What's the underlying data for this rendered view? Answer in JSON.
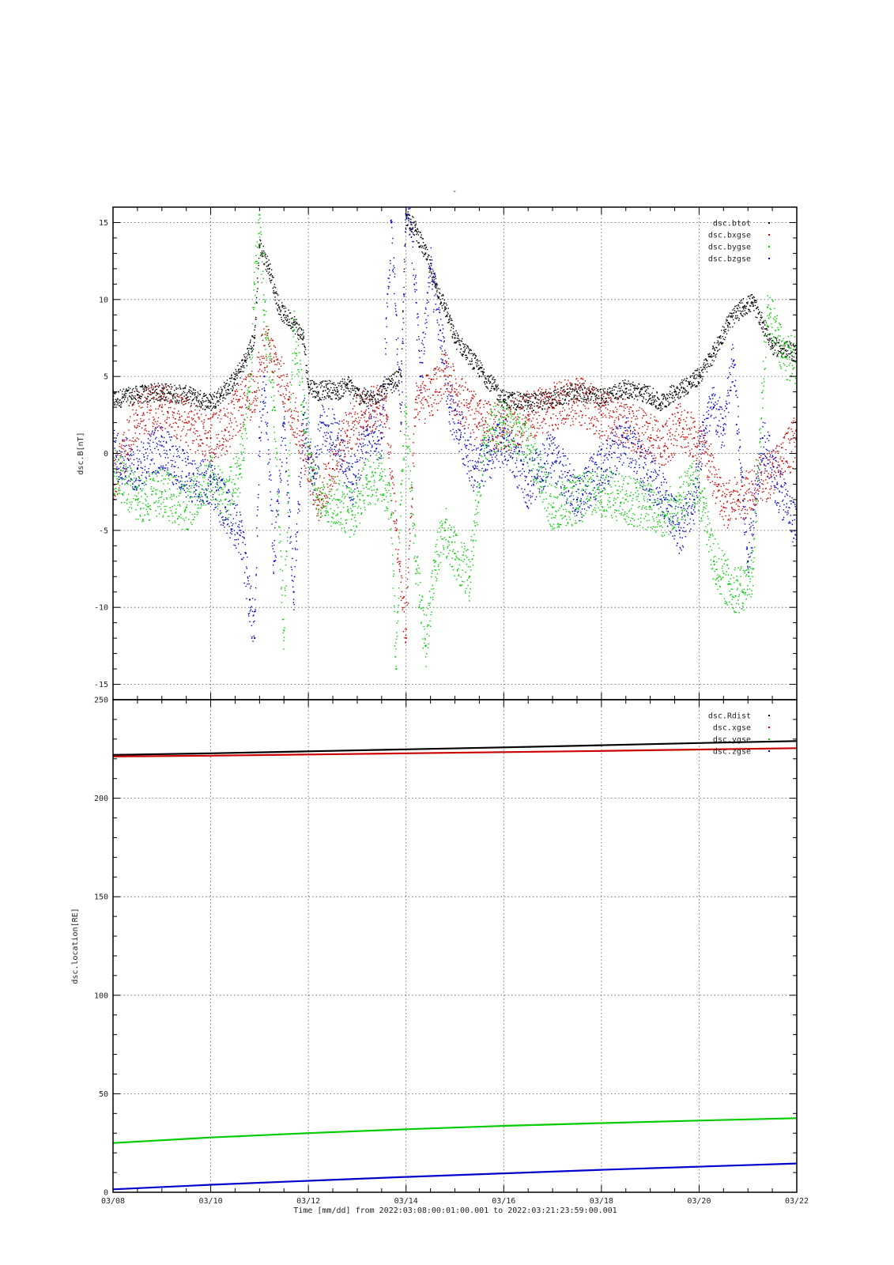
{
  "figure": {
    "top_marker": "-",
    "xlabel": "Time [mm/dd]  from 2022:03:08:00:01:00.001  to  2022:03:21:23:59:00.001"
  },
  "colors": {
    "black": "#000000",
    "red": "#cc0000",
    "green": "#00cc00",
    "blue": "#0000cc"
  },
  "chart_data": [
    {
      "type": "scatter",
      "id": "magnetic-field",
      "title": "",
      "ylabel": "dsc.B[nT]",
      "xlabel": "",
      "xlim": [
        0,
        14
      ],
      "ylim": [
        -16,
        16
      ],
      "x_unit": "days since 03/08 00:00",
      "xticks": [
        0,
        2,
        4,
        6,
        8,
        10,
        12,
        14
      ],
      "xtick_labels": [
        "03/08",
        "03/10",
        "03/12",
        "03/14",
        "03/16",
        "03/18",
        "03/20",
        "03/22"
      ],
      "yticks": [
        -15,
        -10,
        -5,
        0,
        5,
        10,
        15
      ],
      "ytick_labels": [
        "-15",
        "-10",
        "-5",
        "0",
        "5",
        "10",
        "15"
      ],
      "grid": true,
      "legend_position": "top-right",
      "series": [
        {
          "name": "dsc.btot",
          "color": "#000000",
          "x": [
            0,
            0.5,
            1,
            1.5,
            2,
            2.2,
            2.5,
            2.7,
            2.9,
            3.0,
            3.2,
            3.4,
            3.5,
            3.7,
            3.9,
            4.0,
            4.2,
            4.4,
            4.6,
            4.8,
            5.0,
            5.3,
            5.5,
            5.7,
            5.9,
            6.0,
            6.2,
            6.4,
            6.6,
            6.8,
            7.0,
            7.5,
            8.0,
            8.5,
            9.0,
            9.5,
            10.0,
            10.5,
            11.0,
            11.2,
            11.5,
            11.8,
            12.0,
            12.3,
            12.6,
            12.9,
            13.1,
            13.3,
            13.5,
            13.7,
            14.0
          ],
          "y": [
            3.5,
            3.8,
            4.0,
            3.8,
            3.3,
            3.8,
            4.8,
            6.0,
            7.5,
            13.5,
            12.0,
            9.5,
            9.0,
            8.5,
            7.5,
            4.5,
            4.0,
            4.2,
            4.0,
            4.5,
            3.8,
            3.5,
            4.0,
            4.5,
            5.0,
            15.5,
            14.5,
            13.0,
            11.0,
            9.5,
            7.5,
            5.5,
            3.5,
            3.3,
            3.5,
            4.0,
            3.6,
            4.2,
            3.8,
            3.2,
            4.0,
            4.5,
            5.0,
            6.5,
            8.5,
            9.5,
            9.8,
            8.5,
            7.0,
            6.8,
            6.5
          ]
        },
        {
          "name": "dsc.bxgse",
          "color": "#cc0000",
          "x": [
            0,
            0.5,
            1,
            1.5,
            2,
            2.3,
            2.6,
            2.9,
            3.1,
            3.3,
            3.6,
            3.9,
            4.2,
            4.5,
            4.8,
            5.1,
            5.4,
            5.6,
            5.8,
            6.0,
            6.2,
            6.4,
            6.6,
            6.8,
            7.0,
            7.5,
            8.0,
            8.5,
            9.0,
            9.5,
            10.0,
            10.5,
            11.0,
            11.3,
            11.6,
            11.9,
            12.2,
            12.5,
            12.8,
            13.1,
            13.4,
            13.7,
            14.0
          ],
          "y": [
            -2.0,
            2.5,
            3.0,
            2.0,
            1.0,
            1.5,
            3.0,
            4.0,
            7.0,
            6.0,
            3.5,
            0.5,
            -3.0,
            -1.0,
            1.5,
            2.5,
            3.0,
            2.5,
            -5.0,
            -12.0,
            3.5,
            3.5,
            4.0,
            5.5,
            4.0,
            2.0,
            1.5,
            2.5,
            3.0,
            3.5,
            2.5,
            2.0,
            1.0,
            0.5,
            2.0,
            1.0,
            -0.5,
            -3.5,
            -3.0,
            -2.0,
            -1.5,
            -0.5,
            1.0
          ]
        },
        {
          "name": "dsc.bygse",
          "color": "#00cc00",
          "x": [
            0,
            0.5,
            1,
            1.5,
            2,
            2.3,
            2.6,
            2.8,
            2.9,
            3.0,
            3.1,
            3.3,
            3.5,
            3.7,
            3.9,
            4.1,
            4.3,
            4.6,
            4.9,
            5.2,
            5.5,
            5.7,
            5.8,
            5.9,
            6.0,
            6.2,
            6.4,
            6.6,
            6.8,
            7.0,
            7.3,
            7.6,
            8.0,
            8.5,
            9.0,
            9.5,
            10.0,
            10.5,
            11.0,
            11.3,
            11.6,
            11.9,
            12.1,
            12.3,
            12.6,
            12.9,
            13.1,
            13.4,
            13.7,
            14.0
          ],
          "y": [
            -1.0,
            -3.0,
            -2.5,
            -3.5,
            -1.5,
            -3.0,
            -1.0,
            4.0,
            11.0,
            15.5,
            9.0,
            3.0,
            -11.5,
            8.0,
            3.0,
            -1.5,
            -3.5,
            -3.0,
            -4.0,
            -2.0,
            -1.5,
            -4.0,
            -14.0,
            -2.0,
            3.0,
            -7.0,
            -12.5,
            -7.0,
            -5.0,
            -6.5,
            -8.0,
            1.0,
            2.0,
            0.5,
            -3.5,
            -3.0,
            -2.5,
            -3.0,
            -3.5,
            -4.0,
            -3.0,
            -2.0,
            -3.5,
            -7.0,
            -8.5,
            -9.0,
            -7.5,
            9.5,
            6.5,
            6.0
          ]
        },
        {
          "name": "dsc.bzgse",
          "color": "#0000cc",
          "x": [
            0,
            0.5,
            1,
            1.5,
            2,
            2.3,
            2.6,
            2.8,
            2.9,
            3.0,
            3.1,
            3.3,
            3.5,
            3.7,
            3.9,
            4.1,
            4.3,
            4.6,
            4.9,
            5.2,
            5.5,
            5.7,
            5.9,
            6.0,
            6.1,
            6.3,
            6.5,
            6.7,
            6.9,
            7.1,
            7.4,
            7.7,
            8.0,
            8.5,
            9.0,
            9.5,
            10.0,
            10.5,
            11.0,
            11.3,
            11.6,
            11.9,
            12.1,
            12.3,
            12.5,
            12.7,
            13.0,
            13.3,
            13.6,
            14.0
          ],
          "y": [
            0.0,
            -1.0,
            0.5,
            -1.5,
            -2.0,
            -3.5,
            -5.0,
            -9.5,
            -12.0,
            1.0,
            5.0,
            -7.0,
            2.0,
            -9.0,
            2.5,
            -1.5,
            2.0,
            1.0,
            -2.0,
            1.5,
            1.0,
            15.0,
            2.0,
            16.0,
            15.0,
            5.0,
            12.0,
            8.0,
            3.0,
            1.5,
            -1.0,
            -0.5,
            1.0,
            -2.0,
            0.0,
            -3.0,
            -1.0,
            1.0,
            -1.5,
            -3.0,
            -5.0,
            -3.0,
            1.5,
            3.0,
            1.5,
            6.0,
            -7.0,
            1.0,
            -2.0,
            -5.0
          ]
        }
      ]
    },
    {
      "type": "line",
      "id": "location",
      "title": "",
      "ylabel": "dsc.location[RE]",
      "xlabel": "",
      "xlim": [
        0,
        14
      ],
      "ylim": [
        0,
        250
      ],
      "x_unit": "days since 03/08 00:00",
      "xticks": [
        0,
        2,
        4,
        6,
        8,
        10,
        12,
        14
      ],
      "xtick_labels": [
        "03/08",
        "03/10",
        "03/12",
        "03/14",
        "03/16",
        "03/18",
        "03/20",
        "03/22"
      ],
      "yticks": [
        0,
        50,
        100,
        150,
        200,
        250
      ],
      "ytick_labels": [
        "0",
        "50",
        "100",
        "150",
        "200",
        "250"
      ],
      "grid": true,
      "legend_position": "top-right",
      "series": [
        {
          "name": "dsc.Rdist",
          "color": "#000000",
          "x": [
            0,
            2,
            4,
            6,
            8,
            10,
            12,
            14
          ],
          "y": [
            222,
            222.8,
            223.8,
            224.8,
            225.8,
            226.9,
            228.0,
            229.0
          ]
        },
        {
          "name": "dsc.xgse",
          "color": "#cc0000",
          "x": [
            0,
            2,
            4,
            6,
            8,
            10,
            12,
            14
          ],
          "y": [
            221.2,
            221.6,
            222.2,
            222.8,
            223.4,
            224.0,
            224.7,
            225.4
          ]
        },
        {
          "name": "dsc.ygse",
          "color": "#00cc00",
          "x": [
            0,
            2,
            4,
            6,
            8,
            10,
            12,
            14
          ],
          "y": [
            25,
            27.8,
            30.0,
            32.0,
            33.7,
            35.1,
            36.4,
            37.6
          ]
        },
        {
          "name": "dsc.zgse",
          "color": "#0000cc",
          "x": [
            0,
            2,
            4,
            6,
            8,
            10,
            12,
            14
          ],
          "y": [
            1.5,
            3.8,
            5.8,
            7.8,
            9.6,
            11.4,
            13.0,
            14.6
          ]
        }
      ]
    }
  ]
}
